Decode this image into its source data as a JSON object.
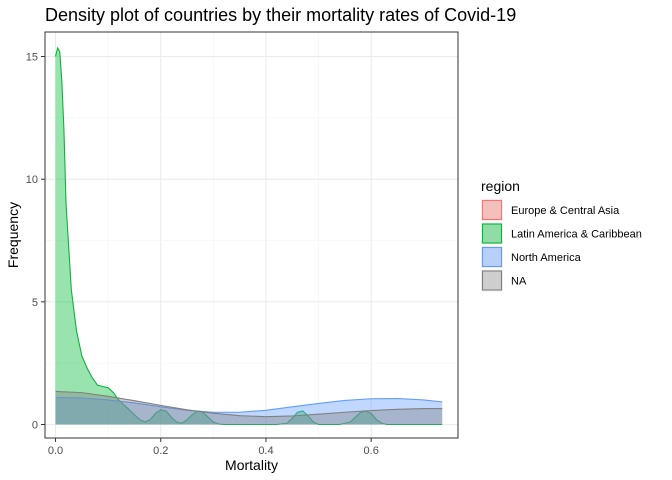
{
  "chart_data": {
    "type": "area",
    "title": "Density plot of countries by their mortality rates of Covid-19",
    "xlabel": "Mortality",
    "ylabel": "Frequency",
    "xlim": [
      -0.02,
      0.765
    ],
    "ylim": [
      -0.55,
      16.0
    ],
    "x_ticks": [
      0.0,
      0.2,
      0.4,
      0.6
    ],
    "x_tick_labels": [
      "0.0",
      "0.2",
      "0.4",
      "0.6"
    ],
    "y_ticks": [
      0,
      5,
      10,
      15
    ],
    "y_tick_labels": [
      "0",
      "5",
      "10",
      "15"
    ],
    "grid": true,
    "legend": {
      "title": "region",
      "position": "right",
      "entries": [
        {
          "label": "Europe & Central Asia",
          "fill": "#F8766D",
          "line": "#F8766D"
        },
        {
          "label": "Latin America & Caribbean",
          "fill": "#00BA38",
          "line": "#00BA38"
        },
        {
          "label": "North America",
          "fill": "#619CFF",
          "line": "#619CFF"
        },
        {
          "label": "NA",
          "fill": "#999999",
          "line": "#808080"
        }
      ]
    },
    "series": [
      {
        "name": "Latin America & Caribbean",
        "color": "#00BA38",
        "x": [
          0.0,
          0.004,
          0.008,
          0.012,
          0.016,
          0.02,
          0.03,
          0.04,
          0.05,
          0.06,
          0.07,
          0.08,
          0.09,
          0.1,
          0.11,
          0.12,
          0.13,
          0.14,
          0.15,
          0.16,
          0.17,
          0.18,
          0.19,
          0.2,
          0.21,
          0.22,
          0.23,
          0.24,
          0.25,
          0.26,
          0.27,
          0.28,
          0.29,
          0.3,
          0.31,
          0.32,
          0.33,
          0.34,
          0.36,
          0.38,
          0.4,
          0.42,
          0.44,
          0.45,
          0.46,
          0.47,
          0.48,
          0.49,
          0.5,
          0.52,
          0.54,
          0.56,
          0.57,
          0.58,
          0.59,
          0.6,
          0.61,
          0.62,
          0.63,
          0.64,
          0.66,
          0.68,
          0.7,
          0.72,
          0.735
        ],
        "values": [
          15.0,
          15.35,
          15.2,
          14.0,
          12.0,
          9.0,
          5.5,
          3.8,
          2.8,
          2.3,
          1.9,
          1.6,
          1.55,
          1.5,
          1.3,
          1.0,
          0.8,
          0.6,
          0.4,
          0.2,
          0.1,
          0.2,
          0.45,
          0.6,
          0.55,
          0.3,
          0.1,
          0.05,
          0.2,
          0.4,
          0.55,
          0.5,
          0.3,
          0.1,
          0.02,
          0.0,
          0.0,
          0.0,
          0.0,
          0.0,
          0.0,
          0.0,
          0.05,
          0.25,
          0.5,
          0.55,
          0.35,
          0.1,
          0.0,
          0.0,
          0.0,
          0.1,
          0.3,
          0.5,
          0.55,
          0.45,
          0.2,
          0.05,
          0.0,
          0.0,
          0.0,
          0.0,
          0.0,
          0.0,
          0.0
        ]
      },
      {
        "name": "North America",
        "color": "#619CFF",
        "x": [
          0.0,
          0.05,
          0.1,
          0.15,
          0.2,
          0.25,
          0.3,
          0.35,
          0.4,
          0.45,
          0.5,
          0.55,
          0.6,
          0.65,
          0.7,
          0.735
        ],
        "values": [
          1.1,
          1.08,
          1.0,
          0.88,
          0.72,
          0.58,
          0.5,
          0.5,
          0.58,
          0.72,
          0.86,
          0.98,
          1.05,
          1.06,
          1.0,
          0.92
        ]
      },
      {
        "name": "NA",
        "color": "#808080",
        "x": [
          0.0,
          0.05,
          0.1,
          0.15,
          0.2,
          0.25,
          0.3,
          0.35,
          0.4,
          0.45,
          0.5,
          0.55,
          0.6,
          0.65,
          0.7,
          0.735
        ],
        "values": [
          1.35,
          1.3,
          1.15,
          0.97,
          0.78,
          0.6,
          0.46,
          0.36,
          0.32,
          0.35,
          0.42,
          0.5,
          0.57,
          0.62,
          0.65,
          0.65
        ]
      }
    ]
  }
}
